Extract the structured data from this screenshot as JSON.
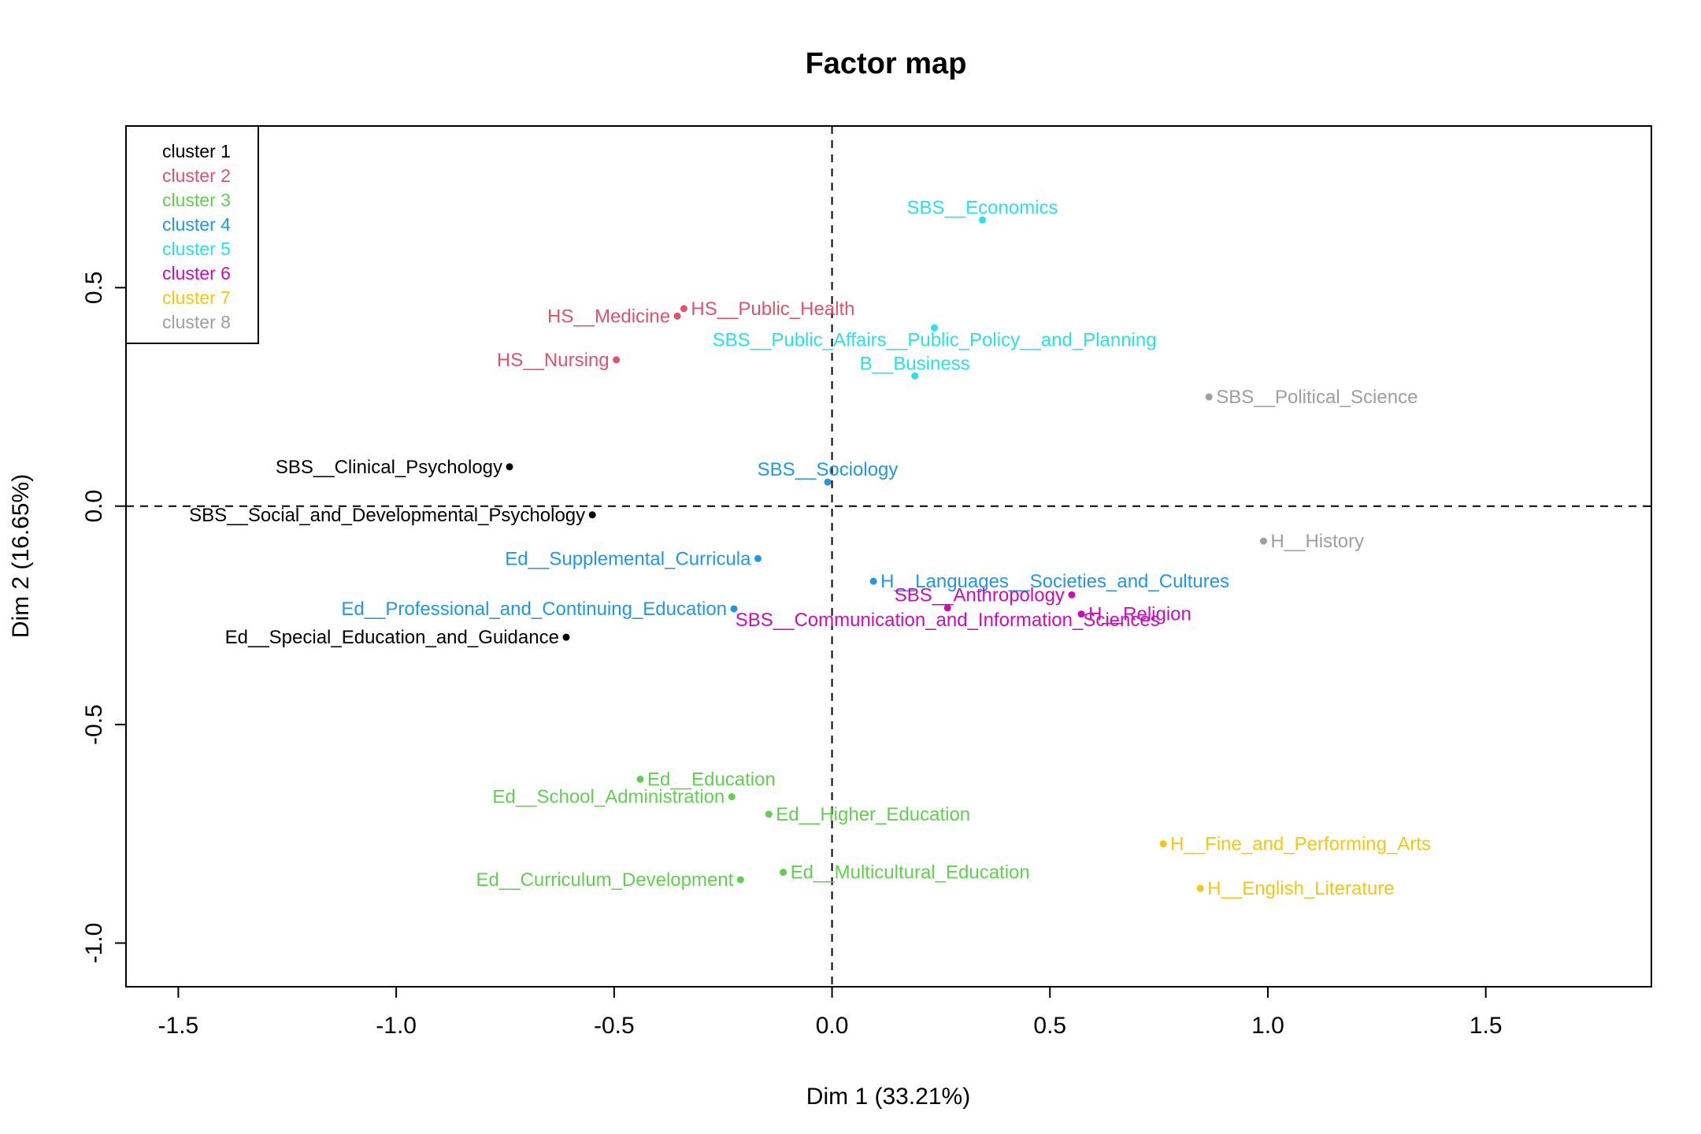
{
  "chart_data": {
    "type": "scatter",
    "title": "Factor map",
    "xlabel": "Dim 1 (33.21%)",
    "ylabel": "Dim 2 (16.65%)",
    "xlim": [
      -1.62,
      1.88
    ],
    "ylim": [
      -1.1,
      0.87
    ],
    "xticks": [
      -1.5,
      -1.0,
      -0.5,
      0.0,
      0.5,
      1.0,
      1.5
    ],
    "xtick_labels": [
      "-1.5",
      "-1.0",
      "-0.5",
      "0.0",
      "0.5",
      "1.0",
      "1.5"
    ],
    "yticks": [
      -1.0,
      -0.5,
      0.0,
      0.5
    ],
    "ytick_labels": [
      "-1.0",
      "-0.5",
      "0.0",
      "0.5"
    ],
    "reference_lines": {
      "x": 0,
      "y": 0,
      "style": "dashed"
    },
    "legend": {
      "placement": "top-left",
      "entries": [
        {
          "label": "cluster 1",
          "color": "#000000"
        },
        {
          "label": "cluster 2",
          "color": "#DF536B"
        },
        {
          "label": "cluster 3",
          "color": "#61D04F"
        },
        {
          "label": "cluster 4",
          "color": "#2297E6"
        },
        {
          "label": "cluster 5",
          "color": "#28E2E5"
        },
        {
          "label": "cluster 6",
          "color": "#CD0BBC"
        },
        {
          "label": "cluster 7",
          "color": "#F5C710"
        },
        {
          "label": "cluster 8",
          "color": "#9E9E9E"
        }
      ]
    },
    "points": [
      {
        "label": "SBS__Clinical_Psychology",
        "x": -0.74,
        "y": 0.09,
        "cluster": 1,
        "pos": "left"
      },
      {
        "label": "SBS__Social_and_Developmental_Psychology",
        "x": -0.55,
        "y": -0.02,
        "cluster": 1,
        "pos": "left"
      },
      {
        "label": "Ed__Special_Education_and_Guidance",
        "x": -0.61,
        "y": -0.3,
        "cluster": 1,
        "pos": "left"
      },
      {
        "label": "HS__Medicine",
        "x": -0.355,
        "y": 0.435,
        "cluster": 2,
        "pos": "left"
      },
      {
        "label": "HS__Public_Health",
        "x": -0.34,
        "y": 0.452,
        "cluster": 2,
        "pos": "right"
      },
      {
        "label": "HS__Nursing",
        "x": -0.495,
        "y": 0.335,
        "cluster": 2,
        "pos": "left"
      },
      {
        "label": "Ed__Education",
        "x": -0.44,
        "y": -0.625,
        "cluster": 3,
        "pos": "right"
      },
      {
        "label": "Ed__School_Administration",
        "x": -0.23,
        "y": -0.665,
        "cluster": 3,
        "pos": "left"
      },
      {
        "label": "Ed__Higher_Education",
        "x": -0.145,
        "y": -0.705,
        "cluster": 3,
        "pos": "right"
      },
      {
        "label": "Ed__Multicultural_Education",
        "x": -0.112,
        "y": -0.838,
        "cluster": 3,
        "pos": "right"
      },
      {
        "label": "Ed__Curriculum_Development",
        "x": -0.21,
        "y": -0.855,
        "cluster": 3,
        "pos": "left"
      },
      {
        "label": "SBS__Sociology",
        "x": -0.01,
        "y": 0.055,
        "cluster": 4,
        "pos": "top"
      },
      {
        "label": "Ed__Supplemental_Curricula",
        "x": -0.17,
        "y": -0.12,
        "cluster": 4,
        "pos": "left"
      },
      {
        "label": "Ed__Professional_and_Continuing_Education",
        "x": -0.225,
        "y": -0.235,
        "cluster": 4,
        "pos": "left"
      },
      {
        "label": "H__Languages__Societies_and_Cultures",
        "x": 0.095,
        "y": -0.172,
        "cluster": 4,
        "pos": "right"
      },
      {
        "label": "SBS__Economics",
        "x": 0.345,
        "y": 0.655,
        "cluster": 5,
        "pos": "top"
      },
      {
        "label": "SBS__Public_Affairs__Public_Policy__and_Planning",
        "x": 0.235,
        "y": 0.408,
        "cluster": 5,
        "pos": "bottom"
      },
      {
        "label": "B__Business",
        "x": 0.19,
        "y": 0.298,
        "cluster": 5,
        "pos": "top"
      },
      {
        "label": "SBS__Anthropology",
        "x": 0.55,
        "y": -0.203,
        "cluster": 6,
        "pos": "left"
      },
      {
        "label": "H__Religion",
        "x": 0.572,
        "y": -0.247,
        "cluster": 6,
        "pos": "right"
      },
      {
        "label": "SBS__Communication_and_Information_Sciences",
        "x": 0.265,
        "y": -0.233,
        "cluster": 6,
        "pos": "bottom"
      },
      {
        "label": "H__Fine_and_Performing_Arts",
        "x": 0.76,
        "y": -0.773,
        "cluster": 7,
        "pos": "right"
      },
      {
        "label": "H__English_Literature",
        "x": 0.845,
        "y": -0.875,
        "cluster": 7,
        "pos": "right"
      },
      {
        "label": "SBS__Political_Science",
        "x": 0.865,
        "y": 0.25,
        "cluster": 8,
        "pos": "right"
      },
      {
        "label": "H__History",
        "x": 0.99,
        "y": -0.08,
        "cluster": 8,
        "pos": "right"
      }
    ]
  }
}
